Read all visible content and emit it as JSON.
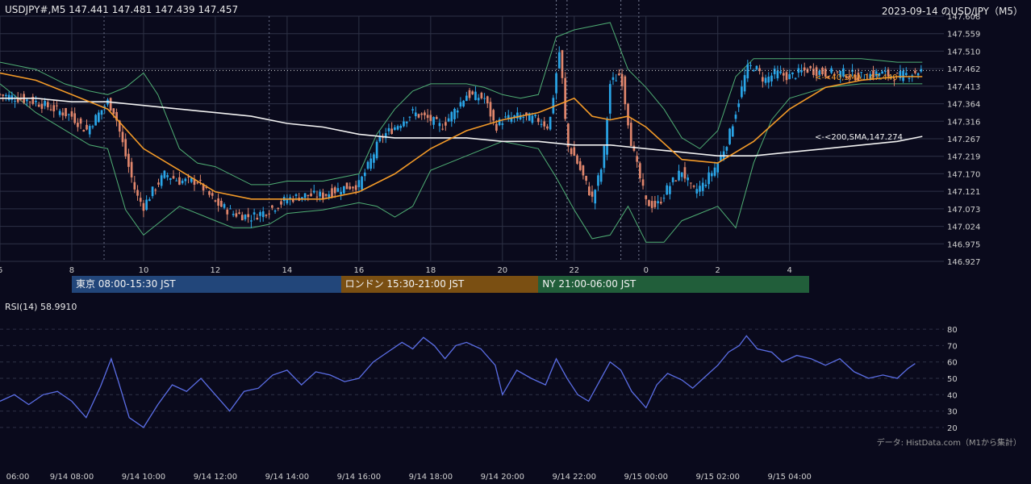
{
  "header": {
    "symbol_line": "USDJPY#,M5 147.441 147.481 147.439 147.457",
    "title_right": "2023-09-14 のUSD/JPY（M5）"
  },
  "sessions": [
    {
      "label": "東京 08:00-15:30 JST",
      "color": "#22467a",
      "start_hour": 8,
      "end_hour": 15.5
    },
    {
      "label": "ロンドン 15:30-21:00 JST",
      "color": "#7a4f12",
      "start_hour": 15.5,
      "end_hour": 21
    },
    {
      "label": "NY 21:00-06:00 JST",
      "color": "#215e3a",
      "start_hour": 21,
      "end_hour": 30
    }
  ],
  "credit": "データ: HistData.com（M1から集計）",
  "colors": {
    "background": "#0a0a1c",
    "grid": "#2e3246",
    "bull": "#2aa6e8",
    "bear": "#e0866c",
    "sma40": "#f39a28",
    "sma200": "#f2f2f2",
    "bollinger": "#4fae74",
    "rsi": "#5b6ee6"
  },
  "chart_data": [
    {
      "type": "candlestick",
      "title": "USDJPY#,M5",
      "timeframe": "M5",
      "x_tick_labels": [
        "6",
        "8",
        "10",
        "12",
        "14",
        "16",
        "18",
        "20",
        "22",
        "0",
        "2",
        "4"
      ],
      "x_tick_hours": [
        6,
        8,
        10,
        12,
        14,
        16,
        18,
        20,
        22,
        24,
        26,
        28
      ],
      "x_range_hours": [
        6,
        32.3
      ],
      "ylim": [
        146.927,
        147.608
      ],
      "y_tick_labels": [
        "147.608",
        "147.559",
        "147.510",
        "147.462",
        "147.413",
        "147.364",
        "147.316",
        "147.267",
        "147.219",
        "147.170",
        "147.121",
        "147.073",
        "147.024",
        "146.975",
        "146.927"
      ],
      "current_price_line": 147.457,
      "indicators": [
        {
          "name": "SMA40",
          "label": "<-<40,SMA,147.440",
          "last_value": 147.44
        },
        {
          "name": "SMA200",
          "label": "<-<200,SMA,147.274",
          "last_value": 147.274
        },
        {
          "name": "Bollinger Bands",
          "label": ""
        }
      ],
      "vertical_event_lines_hours": [
        21.5,
        21.8,
        23.3,
        23.8
      ],
      "close_path": [
        [
          6,
          147.39
        ],
        [
          6.5,
          147.38
        ],
        [
          7,
          147.37
        ],
        [
          7.5,
          147.35
        ],
        [
          8,
          147.33
        ],
        [
          8.4,
          147.29
        ],
        [
          9,
          147.37
        ],
        [
          9.2,
          147.34
        ],
        [
          9.5,
          147.22
        ],
        [
          9.8,
          147.11
        ],
        [
          10,
          147.08
        ],
        [
          10.3,
          147.13
        ],
        [
          10.6,
          147.17
        ],
        [
          11,
          147.15
        ],
        [
          11.5,
          147.15
        ],
        [
          12,
          147.09
        ],
        [
          12.5,
          147.06
        ],
        [
          13,
          147.05
        ],
        [
          13.5,
          147.07
        ],
        [
          14,
          147.1
        ],
        [
          14.5,
          147.11
        ],
        [
          15,
          147.11
        ],
        [
          15.5,
          147.13
        ],
        [
          16,
          147.14
        ],
        [
          16.3,
          147.2
        ],
        [
          16.6,
          147.27
        ],
        [
          17,
          147.3
        ],
        [
          17.5,
          147.34
        ],
        [
          18,
          147.32
        ],
        [
          18.3,
          147.3
        ],
        [
          18.7,
          147.35
        ],
        [
          19,
          147.39
        ],
        [
          19.5,
          147.38
        ],
        [
          19.8,
          147.3
        ],
        [
          20,
          147.32
        ],
        [
          20.5,
          147.33
        ],
        [
          21,
          147.32
        ],
        [
          21.3,
          147.3
        ],
        [
          21.5,
          147.45
        ],
        [
          21.6,
          147.52
        ],
        [
          21.8,
          147.25
        ],
        [
          22,
          147.22
        ],
        [
          22.3,
          147.15
        ],
        [
          22.5,
          147.1
        ],
        [
          22.8,
          147.2
        ],
        [
          23,
          147.42
        ],
        [
          23.3,
          147.45
        ],
        [
          23.6,
          147.25
        ],
        [
          24,
          147.09
        ],
        [
          24.3,
          147.08
        ],
        [
          24.6,
          147.13
        ],
        [
          25,
          147.18
        ],
        [
          25.3,
          147.12
        ],
        [
          25.6,
          147.14
        ],
        [
          26,
          147.2
        ],
        [
          26.3,
          147.27
        ],
        [
          26.6,
          147.38
        ],
        [
          26.8,
          147.46
        ],
        [
          27,
          147.47
        ],
        [
          27.3,
          147.43
        ],
        [
          27.6,
          147.45
        ],
        [
          28,
          147.44
        ],
        [
          28.5,
          147.46
        ],
        [
          29,
          147.45
        ],
        [
          29.5,
          147.45
        ],
        [
          30,
          147.44
        ],
        [
          30.5,
          147.45
        ],
        [
          31,
          147.44
        ],
        [
          31.7,
          147.457
        ]
      ],
      "sma40_path": [
        [
          6,
          147.45
        ],
        [
          7,
          147.43
        ],
        [
          8,
          147.39
        ],
        [
          9,
          147.35
        ],
        [
          10,
          147.24
        ],
        [
          11,
          147.18
        ],
        [
          12,
          147.12
        ],
        [
          13,
          147.1
        ],
        [
          14,
          147.1
        ],
        [
          15,
          147.1
        ],
        [
          16,
          147.12
        ],
        [
          17,
          147.17
        ],
        [
          18,
          147.24
        ],
        [
          19,
          147.29
        ],
        [
          20,
          147.32
        ],
        [
          21,
          147.34
        ],
        [
          21.5,
          147.36
        ],
        [
          22,
          147.38
        ],
        [
          22.5,
          147.33
        ],
        [
          23,
          147.32
        ],
        [
          23.5,
          147.33
        ],
        [
          24,
          147.3
        ],
        [
          25,
          147.21
        ],
        [
          26,
          147.2
        ],
        [
          27,
          147.26
        ],
        [
          28,
          147.35
        ],
        [
          29,
          147.41
        ],
        [
          30,
          147.43
        ],
        [
          31,
          147.44
        ],
        [
          31.7,
          147.44
        ]
      ],
      "sma200_path": [
        [
          6,
          147.38
        ],
        [
          7,
          147.38
        ],
        [
          8,
          147.37
        ],
        [
          9,
          147.37
        ],
        [
          10,
          147.36
        ],
        [
          11,
          147.35
        ],
        [
          12,
          147.34
        ],
        [
          13,
          147.33
        ],
        [
          14,
          147.31
        ],
        [
          15,
          147.3
        ],
        [
          16,
          147.28
        ],
        [
          17,
          147.27
        ],
        [
          18,
          147.27
        ],
        [
          19,
          147.27
        ],
        [
          20,
          147.26
        ],
        [
          21,
          147.26
        ],
        [
          22,
          147.25
        ],
        [
          23,
          147.25
        ],
        [
          24,
          147.24
        ],
        [
          25,
          147.23
        ],
        [
          26,
          147.22
        ],
        [
          27,
          147.22
        ],
        [
          28,
          147.23
        ],
        [
          29,
          147.24
        ],
        [
          30,
          147.25
        ],
        [
          31,
          147.26
        ],
        [
          31.7,
          147.274
        ]
      ],
      "bollinger_upper_path": [
        [
          6,
          147.48
        ],
        [
          7,
          147.46
        ],
        [
          7.8,
          147.42
        ],
        [
          8.5,
          147.4
        ],
        [
          9,
          147.39
        ],
        [
          9.5,
          147.41
        ],
        [
          10,
          147.45
        ],
        [
          10.4,
          147.39
        ],
        [
          11,
          147.24
        ],
        [
          11.5,
          147.2
        ],
        [
          12,
          147.19
        ],
        [
          13,
          147.14
        ],
        [
          13.5,
          147.14
        ],
        [
          14,
          147.15
        ],
        [
          15,
          147.15
        ],
        [
          16,
          147.17
        ],
        [
          16.5,
          147.28
        ],
        [
          17,
          147.35
        ],
        [
          17.5,
          147.4
        ],
        [
          18,
          147.42
        ],
        [
          18.5,
          147.42
        ],
        [
          19,
          147.42
        ],
        [
          19.5,
          147.41
        ],
        [
          20,
          147.39
        ],
        [
          20.5,
          147.38
        ],
        [
          21,
          147.39
        ],
        [
          21.5,
          147.55
        ],
        [
          22,
          147.57
        ],
        [
          22.5,
          147.58
        ],
        [
          23,
          147.59
        ],
        [
          23.5,
          147.46
        ],
        [
          24,
          147.41
        ],
        [
          24.5,
          147.35
        ],
        [
          25,
          147.27
        ],
        [
          25.5,
          147.24
        ],
        [
          26,
          147.29
        ],
        [
          26.5,
          147.44
        ],
        [
          27,
          147.49
        ],
        [
          28,
          147.49
        ],
        [
          29,
          147.49
        ],
        [
          30,
          147.49
        ],
        [
          31,
          147.48
        ],
        [
          31.7,
          147.48
        ]
      ],
      "bollinger_lower_path": [
        [
          6,
          147.42
        ],
        [
          7,
          147.34
        ],
        [
          8,
          147.28
        ],
        [
          8.5,
          147.25
        ],
        [
          9,
          147.24
        ],
        [
          9.5,
          147.07
        ],
        [
          10,
          147.0
        ],
        [
          10.5,
          147.04
        ],
        [
          11,
          147.08
        ],
        [
          12,
          147.04
        ],
        [
          12.5,
          147.02
        ],
        [
          13,
          147.02
        ],
        [
          13.5,
          147.03
        ],
        [
          14,
          147.06
        ],
        [
          15,
          147.07
        ],
        [
          16,
          147.09
        ],
        [
          16.5,
          147.08
        ],
        [
          17,
          147.05
        ],
        [
          17.5,
          147.08
        ],
        [
          18,
          147.18
        ],
        [
          19,
          147.22
        ],
        [
          20,
          147.26
        ],
        [
          21,
          147.24
        ],
        [
          21.5,
          147.16
        ],
        [
          22,
          147.07
        ],
        [
          22.5,
          146.99
        ],
        [
          23,
          147.0
        ],
        [
          23.5,
          147.08
        ],
        [
          24,
          146.98
        ],
        [
          24.5,
          146.98
        ],
        [
          25,
          147.04
        ],
        [
          25.5,
          147.06
        ],
        [
          26,
          147.08
        ],
        [
          26.5,
          147.02
        ],
        [
          27,
          147.2
        ],
        [
          27.5,
          147.32
        ],
        [
          28,
          147.38
        ],
        [
          29,
          147.41
        ],
        [
          30,
          147.42
        ],
        [
          31,
          147.42
        ],
        [
          31.7,
          147.42
        ]
      ]
    },
    {
      "type": "line",
      "title": "RSI(14) 58.9910",
      "ylim": [
        15,
        85
      ],
      "y_ticks": [
        20,
        30,
        40,
        50,
        60,
        70,
        80
      ],
      "x_tick_labels": [
        "06:00",
        "9/14 08:00",
        "9/14 10:00",
        "9/14 12:00",
        "9/14 14:00",
        "9/14 16:00",
        "9/14 18:00",
        "9/14 20:00",
        "9/14 22:00",
        "9/15 00:00",
        "9/15 02:00",
        "9/15 04:00"
      ],
      "series": [
        {
          "points": [
            [
              6,
              36
            ],
            [
              6.4,
              40
            ],
            [
              6.8,
              34
            ],
            [
              7.2,
              40
            ],
            [
              7.6,
              42
            ],
            [
              8,
              36
            ],
            [
              8.4,
              26
            ],
            [
              8.8,
              45
            ],
            [
              9.1,
              62
            ],
            [
              9.3,
              48
            ],
            [
              9.6,
              26
            ],
            [
              10,
              20
            ],
            [
              10.4,
              34
            ],
            [
              10.8,
              46
            ],
            [
              11.2,
              42
            ],
            [
              11.6,
              50
            ],
            [
              12,
              40
            ],
            [
              12.4,
              30
            ],
            [
              12.8,
              42
            ],
            [
              13.2,
              44
            ],
            [
              13.6,
              52
            ],
            [
              14,
              55
            ],
            [
              14.4,
              46
            ],
            [
              14.8,
              54
            ],
            [
              15.2,
              52
            ],
            [
              15.6,
              48
            ],
            [
              16,
              50
            ],
            [
              16.4,
              60
            ],
            [
              16.8,
              66
            ],
            [
              17.2,
              72
            ],
            [
              17.5,
              68
            ],
            [
              17.8,
              75
            ],
            [
              18.1,
              70
            ],
            [
              18.4,
              62
            ],
            [
              18.7,
              70
            ],
            [
              19,
              72
            ],
            [
              19.4,
              68
            ],
            [
              19.8,
              58
            ],
            [
              20,
              40
            ],
            [
              20.4,
              55
            ],
            [
              20.8,
              50
            ],
            [
              21.2,
              46
            ],
            [
              21.5,
              62
            ],
            [
              21.8,
              50
            ],
            [
              22.1,
              40
            ],
            [
              22.4,
              36
            ],
            [
              22.7,
              48
            ],
            [
              23,
              60
            ],
            [
              23.3,
              55
            ],
            [
              23.6,
              42
            ],
            [
              24,
              32
            ],
            [
              24.3,
              46
            ],
            [
              24.6,
              53
            ],
            [
              25,
              49
            ],
            [
              25.3,
              44
            ],
            [
              25.6,
              50
            ],
            [
              26,
              58
            ],
            [
              26.3,
              66
            ],
            [
              26.6,
              70
            ],
            [
              26.8,
              76
            ],
            [
              27.1,
              68
            ],
            [
              27.5,
              66
            ],
            [
              27.8,
              60
            ],
            [
              28.2,
              64
            ],
            [
              28.6,
              62
            ],
            [
              29,
              58
            ],
            [
              29.4,
              62
            ],
            [
              29.8,
              54
            ],
            [
              30.2,
              50
            ],
            [
              30.6,
              52
            ],
            [
              31,
              50
            ],
            [
              31.3,
              56
            ],
            [
              31.5,
              59
            ]
          ]
        }
      ]
    }
  ]
}
